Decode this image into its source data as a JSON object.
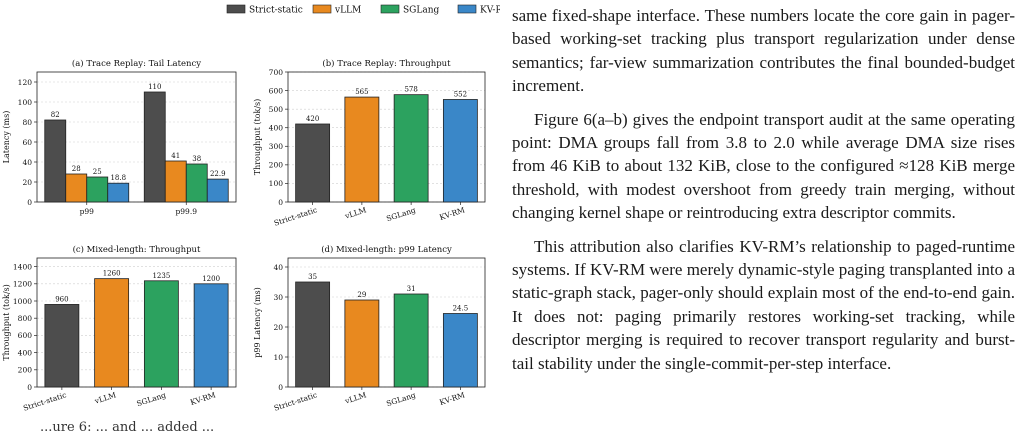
{
  "figure": {
    "legend": [
      {
        "name": "Strict-static",
        "color": "#4d4d4d"
      },
      {
        "name": "vLLM",
        "color": "#e8891f"
      },
      {
        "name": "SGLang",
        "color": "#2ca25f"
      },
      {
        "name": "KV-RM",
        "color": "#3a87c8"
      }
    ],
    "caption_fragment": "...ure 6: ... and ... added ..."
  },
  "chart_data": [
    {
      "type": "bar",
      "title": "(a) Trace Replay: Tail Latency",
      "ylabel": "Latency (ms)",
      "categories": [
        "p99",
        "p99.9"
      ],
      "series": [
        {
          "name": "Strict-static",
          "values": [
            82,
            110
          ]
        },
        {
          "name": "vLLM",
          "values": [
            28,
            41
          ]
        },
        {
          "name": "SGLang",
          "values": [
            25,
            38
          ]
        },
        {
          "name": "KV-RM",
          "values": [
            18.8,
            22.9
          ]
        }
      ],
      "ylim": [
        0,
        130
      ],
      "yticks": [
        0,
        20,
        40,
        60,
        80,
        100,
        120
      ],
      "grid": true
    },
    {
      "type": "bar",
      "title": "(b) Trace Replay: Throughput",
      "ylabel": "Throughput (tok/s)",
      "categories": [
        "Strict-static",
        "vLLM",
        "SGLang",
        "KV-RM"
      ],
      "values": [
        420,
        565,
        578,
        552
      ],
      "ylim": [
        0,
        700
      ],
      "yticks": [
        0,
        100,
        200,
        300,
        400,
        500,
        600,
        700
      ],
      "grid": true
    },
    {
      "type": "bar",
      "title": "(c) Mixed-length: Throughput",
      "ylabel": "Throughput (tok/s)",
      "categories": [
        "Strict-static",
        "vLLM",
        "SGLang",
        "KV-RM"
      ],
      "values": [
        960,
        1260,
        1235,
        1200
      ],
      "ylim": [
        0,
        1500
      ],
      "yticks": [
        0,
        200,
        400,
        600,
        800,
        1000,
        1200,
        1400
      ],
      "grid": true
    },
    {
      "type": "bar",
      "title": "(d) Mixed-length: p99 Latency",
      "ylabel": "p99 Latency (ms)",
      "categories": [
        "Strict-static",
        "vLLM",
        "SGLang",
        "KV-RM"
      ],
      "values": [
        35,
        29,
        31,
        24.5
      ],
      "ylim": [
        0,
        43
      ],
      "yticks": [
        0,
        10,
        20,
        30,
        40
      ],
      "grid": true
    }
  ],
  "body_text": {
    "p1": "same fixed-shape interface. These numbers locate the core gain in pager-based working-set tracking plus transport regularization under dense semantics; far-view summarization contributes the final bounded-budget increment.",
    "p2": "Figure 6(a–b) gives the endpoint transport audit at the same operating point: DMA groups fall from 3.8 to 2.0 while average DMA size rises from 46 KiB to about 132 KiB, close to the configured ≈128 KiB merge threshold, with modest overshoot from greedy train merging, without changing kernel shape or reintroducing extra descriptor commits.",
    "p3": "This attribution also clarifies KV-RM’s relationship to paged-runtime systems. If KV-RM were merely dynamic-style paging transplanted into a static-graph stack, pager-only should explain most of the end-to-end gain. It does not: paging primarily restores working-set tracking, while descriptor merging is required to recover transport regularity and burst-tail stability under the single-commit-per-step interface."
  }
}
